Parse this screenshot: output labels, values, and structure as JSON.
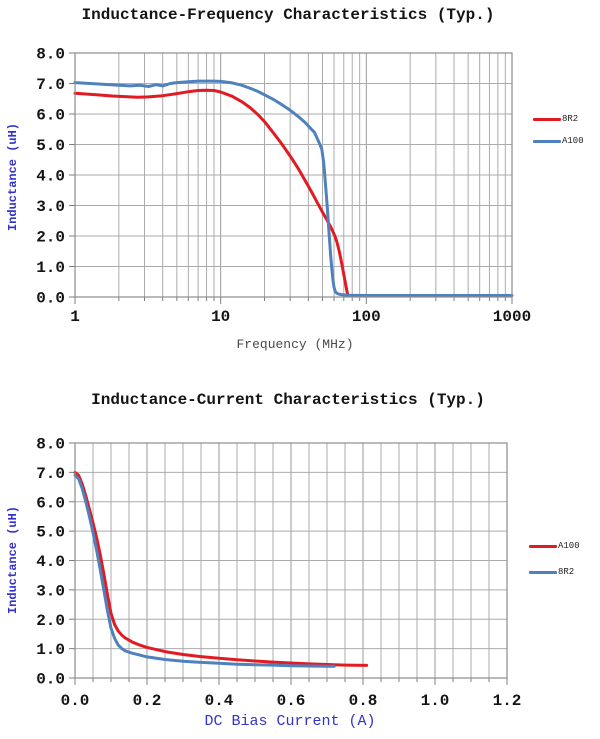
{
  "page": {
    "background": "#ffffff"
  },
  "colors": {
    "series_red": "#e11b22",
    "series_blue": "#4f81bd",
    "grid": "#ababab",
    "frame": "#8c8c8c",
    "tick_text": "#141414",
    "axis_label_blue": "#3333cc",
    "axis_label_gray": "#4a4a4a"
  },
  "chart_data": [
    {
      "type": "line",
      "title": "Inductance-Frequency Characteristics (Typ.)",
      "xlabel": "Frequency (MHz)",
      "ylabel": "Inductance (uH)",
      "grid": true,
      "legend_position": "right",
      "x_axis": {
        "scale": "log",
        "min": 1,
        "max": 1000,
        "tick_labels": [
          "1",
          "10",
          "100",
          "1000"
        ]
      },
      "y_axis": {
        "scale": "linear",
        "min": 0,
        "max": 8,
        "step": 1,
        "tick_labels": [
          "0.0",
          "1.0",
          "2.0",
          "3.0",
          "4.0",
          "5.0",
          "6.0",
          "7.0",
          "8.0"
        ]
      },
      "series": [
        {
          "name": "8R2",
          "color": "#e11b22",
          "points": [
            [
              1,
              6.68
            ],
            [
              1.4,
              6.63
            ],
            [
              1.8,
              6.59
            ],
            [
              2.2,
              6.57
            ],
            [
              2.7,
              6.55
            ],
            [
              3.2,
              6.56
            ],
            [
              4,
              6.6
            ],
            [
              5,
              6.67
            ],
            [
              6,
              6.73
            ],
            [
              7,
              6.77
            ],
            [
              8,
              6.78
            ],
            [
              9,
              6.77
            ],
            [
              10,
              6.72
            ],
            [
              12,
              6.58
            ],
            [
              14,
              6.4
            ],
            [
              16,
              6.2
            ],
            [
              18,
              5.98
            ],
            [
              20,
              5.75
            ],
            [
              23,
              5.38
            ],
            [
              26,
              5.05
            ],
            [
              30,
              4.62
            ],
            [
              34,
              4.22
            ],
            [
              38,
              3.82
            ],
            [
              42,
              3.45
            ],
            [
              46,
              3.1
            ],
            [
              50,
              2.78
            ],
            [
              54,
              2.5
            ],
            [
              58,
              2.22
            ],
            [
              61,
              1.98
            ],
            [
              63,
              1.78
            ],
            [
              65,
              1.52
            ],
            [
              67,
              1.22
            ],
            [
              69,
              0.9
            ],
            [
              71,
              0.58
            ],
            [
              73,
              0.28
            ],
            [
              74,
              0.14
            ],
            [
              75,
              0.04
            ]
          ]
        },
        {
          "name": "A100",
          "color": "#4f81bd",
          "points": [
            [
              1,
              7.03
            ],
            [
              1.5,
              6.98
            ],
            [
              2,
              6.94
            ],
            [
              2.4,
              6.92
            ],
            [
              2.8,
              6.94
            ],
            [
              3.2,
              6.9
            ],
            [
              3.6,
              6.96
            ],
            [
              4,
              6.92
            ],
            [
              4.5,
              7.0
            ],
            [
              5,
              7.03
            ],
            [
              6,
              7.06
            ],
            [
              7,
              7.08
            ],
            [
              8,
              7.08
            ],
            [
              9,
              7.08
            ],
            [
              10,
              7.07
            ],
            [
              12,
              7.02
            ],
            [
              14,
              6.94
            ],
            [
              16,
              6.84
            ],
            [
              18,
              6.74
            ],
            [
              20,
              6.63
            ],
            [
              23,
              6.48
            ],
            [
              26,
              6.32
            ],
            [
              30,
              6.12
            ],
            [
              34,
              5.92
            ],
            [
              38,
              5.72
            ],
            [
              41,
              5.55
            ],
            [
              44,
              5.4
            ],
            [
              46,
              5.2
            ],
            [
              48,
              5.0
            ],
            [
              49.5,
              4.85
            ],
            [
              51,
              4.4
            ],
            [
              52,
              3.9
            ],
            [
              53,
              3.4
            ],
            [
              54,
              2.9
            ],
            [
              55,
              2.35
            ],
            [
              56,
              1.8
            ],
            [
              57,
              1.3
            ],
            [
              58,
              0.9
            ],
            [
              59,
              0.55
            ],
            [
              60,
              0.32
            ],
            [
              61,
              0.2
            ],
            [
              62,
              0.14
            ],
            [
              64,
              0.1
            ],
            [
              67,
              0.08
            ],
            [
              75,
              0.06
            ],
            [
              100,
              0.05
            ],
            [
              300,
              0.05
            ],
            [
              1000,
              0.05
            ]
          ]
        }
      ]
    },
    {
      "type": "line",
      "title": "Inductance-Current Characteristics (Typ.)",
      "xlabel": "DC Bias Current (A)",
      "ylabel": "Inductance (uH)",
      "grid": true,
      "legend_position": "right",
      "x_axis": {
        "scale": "linear",
        "min": 0,
        "max": 1.2,
        "major_step": 0.2,
        "minor_step": 0.05,
        "tick_labels": [
          "0.0",
          "0.2",
          "0.4",
          "0.6",
          "0.8",
          "1.0",
          "1.2"
        ]
      },
      "y_axis": {
        "scale": "linear",
        "min": 0,
        "max": 8,
        "step": 1,
        "tick_labels": [
          "0.0",
          "1.0",
          "2.0",
          "3.0",
          "4.0",
          "5.0",
          "6.0",
          "7.0",
          "8.0"
        ]
      },
      "series": [
        {
          "name": "A100",
          "color": "#e11b22",
          "points": [
            [
              0,
              7.0
            ],
            [
              0.01,
              6.9
            ],
            [
              0.02,
              6.6
            ],
            [
              0.03,
              6.2
            ],
            [
              0.04,
              5.75
            ],
            [
              0.05,
              5.28
            ],
            [
              0.06,
              4.78
            ],
            [
              0.07,
              4.2
            ],
            [
              0.08,
              3.55
            ],
            [
              0.09,
              2.85
            ],
            [
              0.1,
              2.2
            ],
            [
              0.11,
              1.82
            ],
            [
              0.12,
              1.6
            ],
            [
              0.13,
              1.46
            ],
            [
              0.14,
              1.36
            ],
            [
              0.16,
              1.22
            ],
            [
              0.18,
              1.12
            ],
            [
              0.2,
              1.04
            ],
            [
              0.25,
              0.9
            ],
            [
              0.3,
              0.8
            ],
            [
              0.35,
              0.73
            ],
            [
              0.4,
              0.67
            ],
            [
              0.45,
              0.62
            ],
            [
              0.5,
              0.58
            ],
            [
              0.55,
              0.54
            ],
            [
              0.6,
              0.51
            ],
            [
              0.65,
              0.48
            ],
            [
              0.7,
              0.46
            ],
            [
              0.75,
              0.44
            ],
            [
              0.81,
              0.43
            ]
          ]
        },
        {
          "name": "8R2",
          "color": "#4f81bd",
          "points": [
            [
              0,
              6.9
            ],
            [
              0.01,
              6.78
            ],
            [
              0.02,
              6.45
            ],
            [
              0.03,
              6.0
            ],
            [
              0.04,
              5.5
            ],
            [
              0.05,
              4.95
            ],
            [
              0.06,
              4.35
            ],
            [
              0.07,
              3.7
            ],
            [
              0.08,
              3.0
            ],
            [
              0.09,
              2.3
            ],
            [
              0.1,
              1.7
            ],
            [
              0.11,
              1.35
            ],
            [
              0.12,
              1.12
            ],
            [
              0.13,
              1.0
            ],
            [
              0.14,
              0.92
            ],
            [
              0.16,
              0.84
            ],
            [
              0.18,
              0.78
            ],
            [
              0.2,
              0.72
            ],
            [
              0.25,
              0.63
            ],
            [
              0.3,
              0.57
            ],
            [
              0.35,
              0.53
            ],
            [
              0.4,
              0.5
            ],
            [
              0.45,
              0.47
            ],
            [
              0.5,
              0.45
            ],
            [
              0.55,
              0.44
            ],
            [
              0.6,
              0.42
            ],
            [
              0.65,
              0.41
            ],
            [
              0.7,
              0.4
            ],
            [
              0.72,
              0.4
            ]
          ]
        }
      ]
    }
  ]
}
